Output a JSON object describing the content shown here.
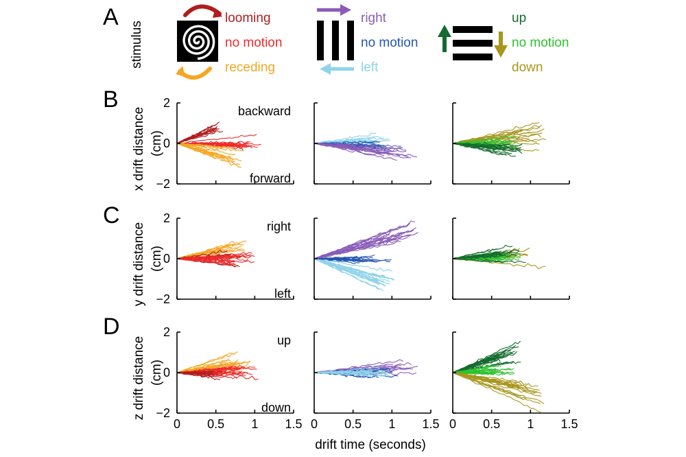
{
  "panel_letters": [
    "A",
    "B",
    "C",
    "D"
  ],
  "stimulus_label": "stimulus",
  "legend": [
    {
      "items": [
        {
          "label": "looming",
          "color": "#b01d1d"
        },
        {
          "label": "no motion",
          "color": "#ee2b2b"
        },
        {
          "label": "receding",
          "color": "#f5a623"
        }
      ]
    },
    {
      "items": [
        {
          "label": "right",
          "color": "#8a5cb8"
        },
        {
          "label": "no motion",
          "color": "#2456b0"
        },
        {
          "label": "left",
          "color": "#8fd3ea"
        }
      ]
    },
    {
      "items": [
        {
          "label": "up",
          "color": "#136b2e"
        },
        {
          "label": "no motion",
          "color": "#2fc12f"
        },
        {
          "label": "down",
          "color": "#a8961e"
        }
      ]
    }
  ],
  "icons": [
    "spiral-icon",
    "vertical-stripes-icon",
    "horizontal-stripes-icon"
  ],
  "xlabel": "drift time (seconds)",
  "x_ticks": [
    "0",
    "0.5",
    "1",
    "1.5"
  ],
  "y_ticks": [
    "2",
    "0",
    "−2"
  ],
  "chart_data": {
    "type": "line",
    "description_rows": [
      {
        "ylabel_top": "x drift distance",
        "ylabel_bottom": "(cm)",
        "dir_pos": "backward",
        "dir_neg": "forward"
      },
      {
        "ylabel_top": "y drift distance",
        "ylabel_bottom": "(cm)",
        "dir_pos": "right",
        "dir_neg": "left"
      },
      {
        "ylabel_top": "z drift distance",
        "ylabel_bottom": "(cm)",
        "dir_pos": "up",
        "dir_neg": "down"
      }
    ],
    "xlim": [
      0,
      1.5
    ],
    "ylim": [
      -2,
      2
    ],
    "grid": false,
    "panels": [
      {
        "row": 0,
        "col": 0,
        "series": [
          {
            "color": "#b01d1d",
            "slope": 1.55,
            "spread": 0.28,
            "tmin": 0.35,
            "tmax": 0.6,
            "n": 12
          },
          {
            "color": "#ee2b2b",
            "slope": 0.0,
            "spread": 0.18,
            "tmin": 0.55,
            "tmax": 1.1,
            "n": 16
          },
          {
            "color": "#f5a623",
            "slope": -1.1,
            "spread": 0.35,
            "tmin": 0.5,
            "tmax": 0.9,
            "n": 16
          }
        ]
      },
      {
        "row": 0,
        "col": 1,
        "series": [
          {
            "color": "#8fd3ea",
            "slope": 0.15,
            "spread": 0.3,
            "tmin": 0.7,
            "tmax": 1.0,
            "n": 16
          },
          {
            "color": "#2456b0",
            "slope": -0.2,
            "spread": 0.18,
            "tmin": 0.6,
            "tmax": 1.15,
            "n": 12
          },
          {
            "color": "#8a5cb8",
            "slope": -0.45,
            "spread": 0.2,
            "tmin": 0.9,
            "tmax": 1.35,
            "n": 12
          }
        ]
      },
      {
        "row": 0,
        "col": 2,
        "series": [
          {
            "color": "#a8961e",
            "slope": 0.5,
            "spread": 0.3,
            "tmin": 0.8,
            "tmax": 1.2,
            "n": 16
          },
          {
            "color": "#2fc12f",
            "slope": -0.05,
            "spread": 0.22,
            "tmin": 0.5,
            "tmax": 0.85,
            "n": 14
          },
          {
            "color": "#136b2e",
            "slope": -0.45,
            "spread": 0.25,
            "tmin": 0.6,
            "tmax": 0.95,
            "n": 14
          }
        ]
      },
      {
        "row": 1,
        "col": 0,
        "series": [
          {
            "color": "#f5a623",
            "slope": 0.75,
            "spread": 0.3,
            "tmin": 0.55,
            "tmax": 0.9,
            "n": 14
          },
          {
            "color": "#b01d1d",
            "slope": 0.25,
            "spread": 0.3,
            "tmin": 0.5,
            "tmax": 0.9,
            "n": 12
          },
          {
            "color": "#ee2b2b",
            "slope": 0.05,
            "spread": 0.25,
            "tmin": 0.6,
            "tmax": 1.05,
            "n": 16
          }
        ]
      },
      {
        "row": 1,
        "col": 1,
        "series": [
          {
            "color": "#8a5cb8",
            "slope": 1.1,
            "spread": 0.22,
            "tmin": 0.9,
            "tmax": 1.35,
            "n": 18
          },
          {
            "color": "#2456b0",
            "slope": 0.0,
            "spread": 0.12,
            "tmin": 0.5,
            "tmax": 1.05,
            "n": 12
          },
          {
            "color": "#8fd3ea",
            "slope": -1.3,
            "spread": 0.3,
            "tmin": 0.8,
            "tmax": 1.05,
            "n": 18
          }
        ]
      },
      {
        "row": 1,
        "col": 2,
        "series": [
          {
            "color": "#a8961e",
            "slope": 0.2,
            "spread": 0.25,
            "tmin": 0.6,
            "tmax": 1.2,
            "n": 14
          },
          {
            "color": "#2fc12f",
            "slope": 0.1,
            "spread": 0.25,
            "tmin": 0.5,
            "tmax": 0.9,
            "n": 16
          },
          {
            "color": "#136b2e",
            "slope": 0.35,
            "spread": 0.3,
            "tmin": 0.5,
            "tmax": 0.95,
            "n": 14
          }
        ]
      },
      {
        "row": 2,
        "col": 0,
        "series": [
          {
            "color": "#f5a623",
            "slope": 0.75,
            "spread": 0.3,
            "tmin": 0.6,
            "tmax": 0.95,
            "n": 18
          },
          {
            "color": "#ee2b2b",
            "slope": 0.1,
            "spread": 0.25,
            "tmin": 0.6,
            "tmax": 1.05,
            "n": 16
          },
          {
            "color": "#b01d1d",
            "slope": -0.3,
            "spread": 0.3,
            "tmin": 0.45,
            "tmax": 0.6,
            "n": 10
          }
        ]
      },
      {
        "row": 2,
        "col": 1,
        "series": [
          {
            "color": "#8a5cb8",
            "slope": 0.2,
            "spread": 0.2,
            "tmin": 0.9,
            "tmax": 1.35,
            "n": 14
          },
          {
            "color": "#2456b0",
            "slope": 0.0,
            "spread": 0.18,
            "tmin": 0.6,
            "tmax": 1.1,
            "n": 12
          },
          {
            "color": "#8fd3ea",
            "slope": -0.05,
            "spread": 0.15,
            "tmin": 0.7,
            "tmax": 1.0,
            "n": 14
          }
        ]
      },
      {
        "row": 2,
        "col": 2,
        "series": [
          {
            "color": "#136b2e",
            "slope": 1.4,
            "spread": 0.3,
            "tmin": 0.55,
            "tmax": 0.9,
            "n": 20
          },
          {
            "color": "#2fc12f",
            "slope": 0.25,
            "spread": 0.3,
            "tmin": 0.5,
            "tmax": 0.8,
            "n": 16
          },
          {
            "color": "#a8961e",
            "slope": -1.0,
            "spread": 0.35,
            "tmin": 0.8,
            "tmax": 1.2,
            "n": 18
          }
        ]
      }
    ]
  }
}
